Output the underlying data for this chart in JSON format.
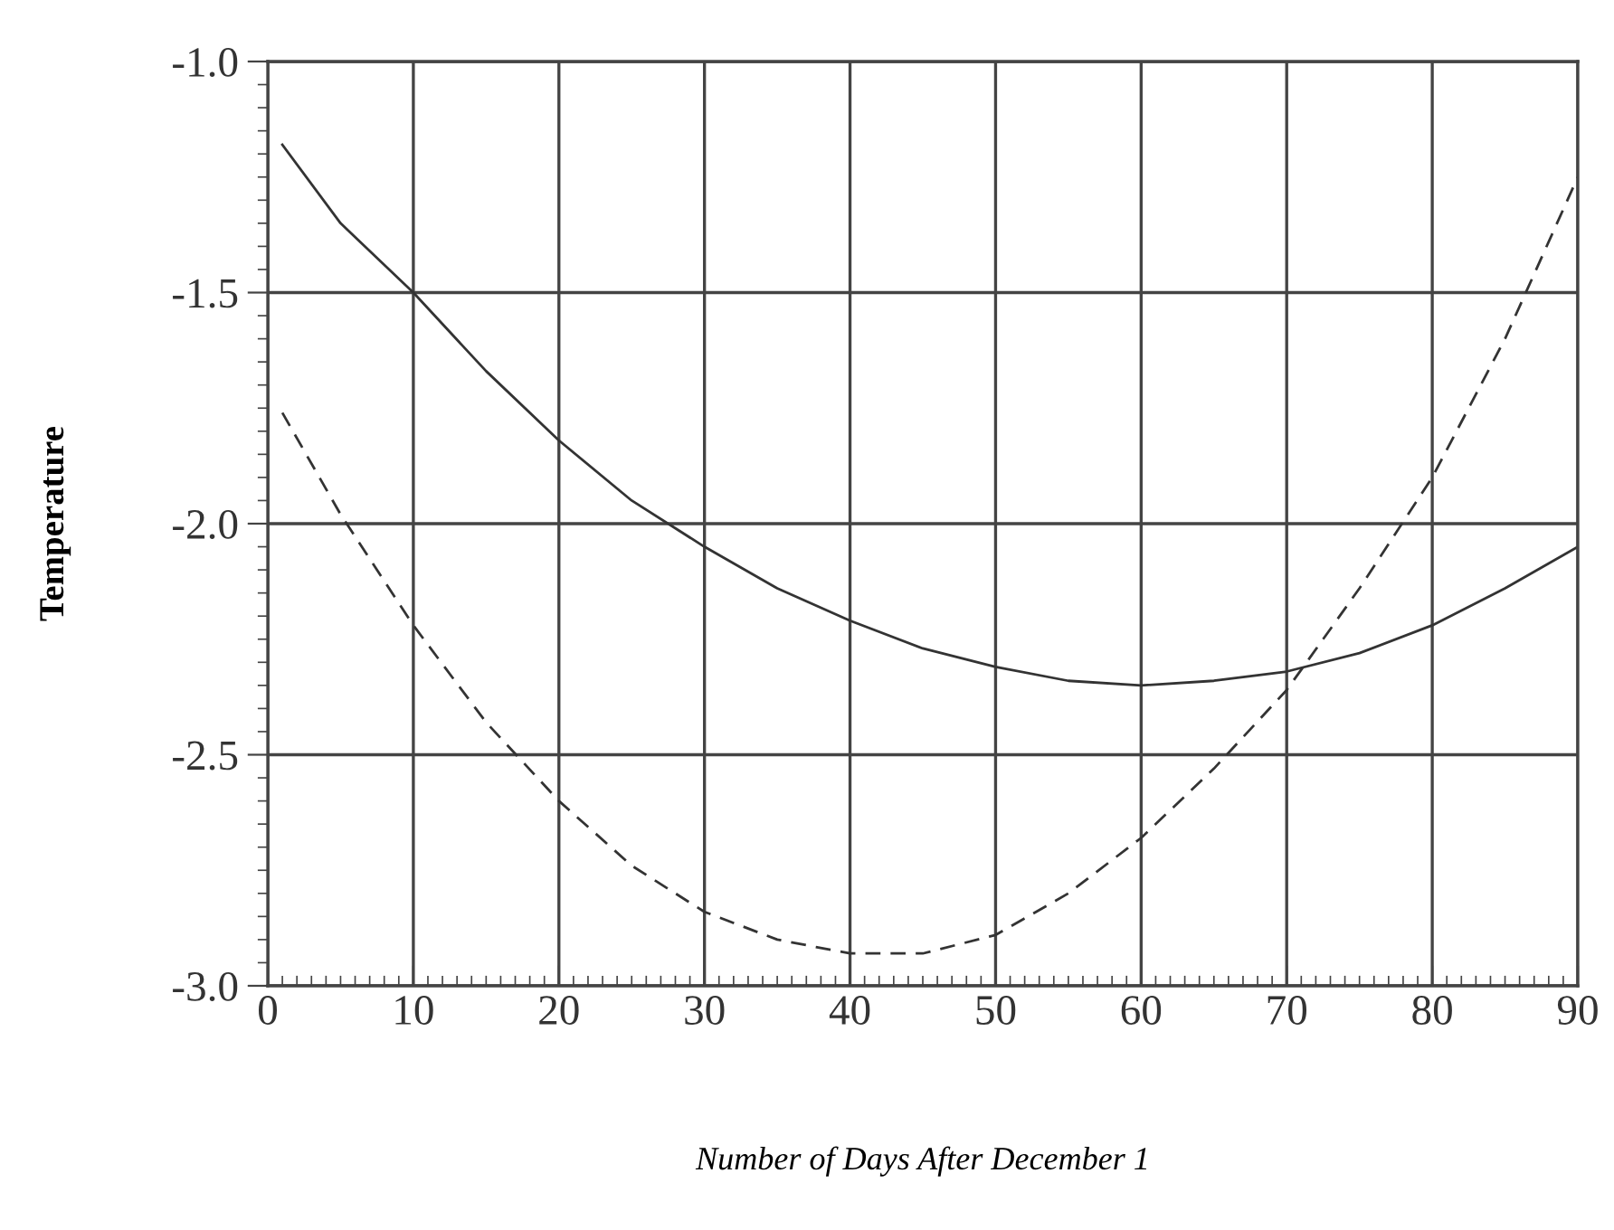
{
  "chart_data": {
    "type": "line",
    "xlabel": "Number of Days After December 1",
    "ylabel": "Temperature",
    "xlim": [
      0,
      90
    ],
    "ylim": [
      -3.0,
      -1.0
    ],
    "xticks": [
      0,
      10,
      20,
      30,
      40,
      50,
      60,
      70,
      80,
      90
    ],
    "yticks": [
      {
        "value": -3.0,
        "label": "-3.0"
      },
      {
        "value": -2.5,
        "label": "-2.5"
      },
      {
        "value": -2.0,
        "label": "-2.0"
      },
      {
        "value": -1.5,
        "label": "-1.5"
      },
      {
        "value": -1.0,
        "label": "-1.0"
      }
    ],
    "grid": true,
    "legend": false,
    "series": [
      {
        "color": "#333333",
        "line_style": "solid",
        "x": [
          1,
          5,
          10,
          15,
          20,
          25,
          30,
          35,
          40,
          45,
          50,
          55,
          60,
          65,
          70,
          75,
          80,
          85,
          90
        ],
        "values": [
          -1.18,
          -1.35,
          -1.5,
          -1.67,
          -1.82,
          -1.95,
          -2.05,
          -2.14,
          -2.21,
          -2.27,
          -2.31,
          -2.34,
          -2.35,
          -2.34,
          -2.32,
          -2.28,
          -2.22,
          -2.14,
          -2.05
        ]
      },
      {
        "color": "#333333",
        "line_style": "dashed",
        "x": [
          1,
          5,
          10,
          15,
          20,
          25,
          30,
          35,
          40,
          45,
          50,
          55,
          60,
          65,
          70,
          75,
          80,
          85,
          90
        ],
        "values": [
          -1.76,
          -1.98,
          -2.22,
          -2.43,
          -2.6,
          -2.74,
          -2.84,
          -2.9,
          -2.93,
          -2.93,
          -2.89,
          -2.8,
          -2.68,
          -2.53,
          -2.36,
          -2.14,
          -1.9,
          -1.6,
          -1.25
        ]
      }
    ]
  }
}
